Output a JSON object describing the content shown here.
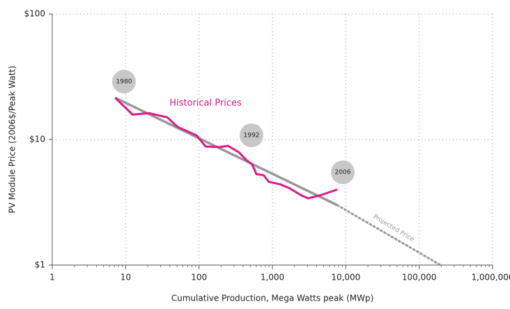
{
  "chart_data": {
    "type": "line",
    "log_x": true,
    "log_y": true,
    "grid": true,
    "xlabel": "Cumulative Production, Mega Watts peak (MWp)",
    "ylabel": "PV Module Price (2006$/Peak Watt)",
    "xlim": [
      1,
      1000000
    ],
    "ylim": [
      1,
      100
    ],
    "xticks": [
      1,
      10,
      100,
      {
        "value": 1000,
        "label": "1,000"
      },
      {
        "value": 10000,
        "label": "10,000"
      },
      {
        "value": 100000,
        "label": "100,000"
      },
      {
        "value": 1000000,
        "label": "1,000,000"
      }
    ],
    "yticks": [
      {
        "value": 1,
        "label": "$1"
      },
      {
        "value": 10,
        "label": "$10"
      },
      {
        "value": 100,
        "label": "$100"
      }
    ],
    "annotations": [
      "1980",
      "1992",
      "2006"
    ],
    "series": [
      {
        "name": "Historical Prices",
        "color": "#e0198a",
        "style": "solid",
        "x": [
          7.2,
          12.4,
          21,
          37,
          51,
          92,
          123,
          190,
          247,
          351,
          437,
          531,
          604,
          756,
          893,
          1270,
          1700,
          2450,
          3060,
          4530,
          7660
        ],
        "values": [
          21.5,
          15.8,
          16.2,
          15.0,
          12.6,
          10.8,
          8.8,
          8.7,
          8.9,
          7.9,
          6.9,
          6.3,
          5.3,
          5.2,
          4.6,
          4.4,
          4.1,
          3.6,
          3.4,
          3.6,
          4.0
        ]
      },
      {
        "color": "#999999",
        "style": "solid",
        "x": [
          7.2,
          7660
        ],
        "values": [
          21.5,
          3.0
        ]
      },
      {
        "name": "Projected Price",
        "color": "#999999",
        "style": "dotted",
        "x": [
          7660,
          195000
        ],
        "values": [
          3.0,
          1
        ]
      }
    ]
  }
}
